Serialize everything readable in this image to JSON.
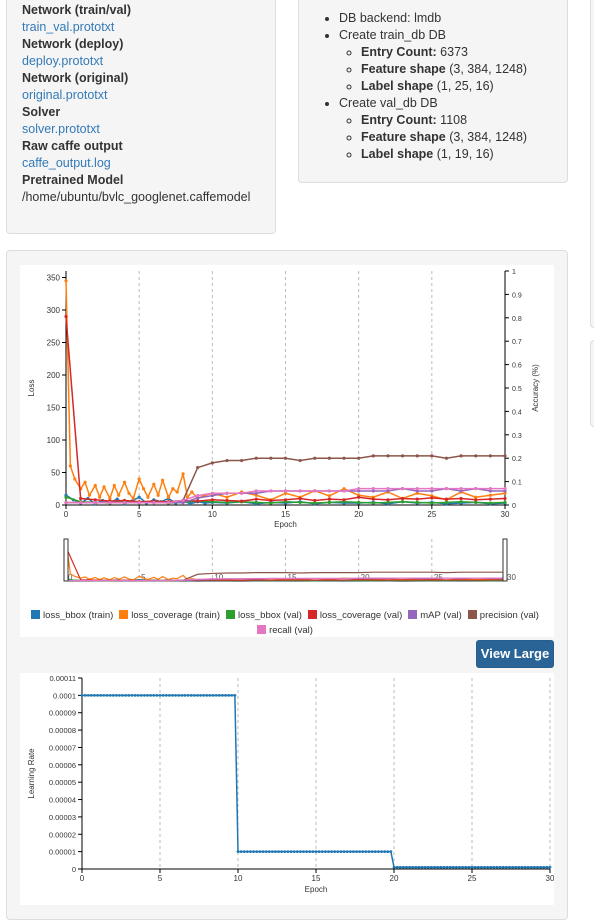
{
  "job_files": {
    "items": [
      {
        "label": "Network (train/val)",
        "value": "train_val.prototxt",
        "link": true
      },
      {
        "label": "Network (deploy)",
        "value": "deploy.prototxt",
        "link": true
      },
      {
        "label": "Network (original)",
        "value": "original.prototxt",
        "link": true
      },
      {
        "label": "Solver",
        "value": "solver.prototxt",
        "link": true
      },
      {
        "label": "Raw caffe output",
        "value": "caffe_output.log",
        "link": true
      },
      {
        "label": "Pretrained Model",
        "value": "/home/ubuntu/bvlc_googlenet.caffemodel",
        "link": false
      }
    ]
  },
  "dataset": {
    "backend_label": "DB backend:",
    "backend_value": "lmdb",
    "train_title": "Create train_db DB",
    "train_entry_label": "Entry Count:",
    "train_entry_value": "6373",
    "train_feature_label": "Feature shape",
    "train_feature_value": "(3, 384, 1248)",
    "train_label_label": "Label shape",
    "train_label_value": "(1, 25, 16)",
    "val_title": "Create val_db DB",
    "val_entry_label": "Entry Count:",
    "val_entry_value": "1108",
    "val_feature_label": "Feature shape",
    "val_feature_value": "(3, 384, 1248)",
    "val_label_label": "Label shape",
    "val_label_value": "(1, 19, 16)"
  },
  "view_large_label": "View Large",
  "chart_data": [
    {
      "type": "line",
      "xlabel": "Epoch",
      "ylabel": "Loss",
      "y2label": "Accuracy (%)",
      "xlim": [
        0,
        30
      ],
      "ylim": [
        0,
        360
      ],
      "y2lim": [
        0,
        1
      ],
      "xticks": [
        0,
        5,
        10,
        15,
        20,
        25,
        30
      ],
      "yticks": [
        0,
        50,
        100,
        150,
        200,
        250,
        300,
        350
      ],
      "y2ticks": [
        0,
        0.1,
        0.2,
        0.3,
        0.4,
        0.5,
        0.6,
        0.7,
        0.8,
        0.9,
        1
      ],
      "grid": "vertical dashed",
      "legend_position": "bottom",
      "colors": {
        "loss_bbox (train)": "#1f77b4",
        "loss_coverage (train)": "#ff7f0e",
        "loss_bbox (val)": "#2ca02c",
        "loss_coverage (val)": "#d62728",
        "mAP (val)": "#9467bd",
        "precision (val)": "#8c564b",
        "recall (val)": "#e377c2"
      },
      "series": [
        {
          "name": "loss_bbox (train)",
          "axis": "y",
          "x": [
            0,
            0.5,
            1,
            1.5,
            2,
            2.5,
            3,
            3.5,
            4,
            4.5,
            5,
            5.5,
            6,
            6.5,
            7,
            7.5,
            8,
            8.5,
            9,
            9.5,
            10,
            11,
            12,
            13,
            14,
            15,
            16,
            17,
            18,
            19,
            20,
            21,
            22,
            23,
            24,
            25,
            26,
            27,
            28,
            29,
            30
          ],
          "values": [
            15,
            8,
            3,
            10,
            2,
            7,
            4,
            9,
            2,
            6,
            12,
            3,
            8,
            5,
            10,
            3,
            6,
            2,
            5,
            3,
            4,
            3,
            5,
            2,
            4,
            3,
            5,
            2,
            4,
            3,
            3,
            4,
            2,
            5,
            3,
            4,
            2,
            3,
            4,
            2,
            3
          ]
        },
        {
          "name": "loss_coverage (train)",
          "axis": "y",
          "x": [
            0,
            0.3,
            0.6,
            1,
            1.3,
            1.6,
            2,
            2.3,
            2.6,
            3,
            3.3,
            3.6,
            4,
            4.3,
            4.6,
            5,
            5.3,
            5.6,
            6,
            6.3,
            6.6,
            7,
            7.3,
            7.6,
            8,
            8.3,
            8.6,
            9,
            9.5,
            10,
            11,
            12,
            13,
            14,
            15,
            16,
            17,
            18,
            19,
            20,
            21,
            22,
            23,
            24,
            25,
            26,
            27,
            28,
            29,
            30
          ],
          "values": [
            345,
            60,
            40,
            25,
            35,
            15,
            30,
            12,
            28,
            10,
            30,
            15,
            35,
            18,
            10,
            40,
            25,
            12,
            32,
            15,
            38,
            12,
            25,
            20,
            48,
            12,
            20,
            10,
            15,
            18,
            12,
            20,
            15,
            8,
            18,
            12,
            22,
            14,
            25,
            15,
            12,
            20,
            10,
            18,
            14,
            8,
            20,
            12,
            15,
            18
          ]
        },
        {
          "name": "loss_bbox (val)",
          "axis": "y",
          "x": [
            0,
            1,
            2,
            3,
            4,
            5,
            6,
            7,
            8,
            9,
            10,
            11,
            12,
            13,
            14,
            15,
            16,
            17,
            18,
            19,
            20,
            21,
            22,
            23,
            24,
            25,
            26,
            27,
            28,
            29,
            30
          ],
          "values": [
            12,
            5,
            4,
            3,
            6,
            4,
            5,
            3,
            4,
            6,
            5,
            4,
            5,
            4,
            3,
            5,
            4,
            3,
            4,
            5,
            4,
            3,
            4,
            5,
            4,
            3,
            4,
            5,
            4,
            3,
            4
          ]
        },
        {
          "name": "loss_coverage (val)",
          "axis": "y",
          "x": [
            0,
            1,
            2,
            3,
            4,
            5,
            6,
            7,
            8,
            9,
            10,
            11,
            12,
            13,
            14,
            15,
            16,
            17,
            18,
            19,
            20,
            21,
            22,
            23,
            24,
            25,
            26,
            27,
            28,
            29,
            30
          ],
          "values": [
            290,
            10,
            8,
            6,
            7,
            5,
            6,
            5,
            7,
            6,
            8,
            7,
            6,
            9,
            7,
            8,
            10,
            7,
            9,
            8,
            12,
            9,
            8,
            10,
            9,
            11,
            9,
            10,
            8,
            9,
            10
          ]
        },
        {
          "name": "mAP (val)",
          "axis": "y2",
          "x": [
            0,
            1,
            2,
            3,
            4,
            5,
            6,
            7,
            8,
            9,
            10,
            11,
            12,
            13,
            14,
            15,
            16,
            17,
            18,
            19,
            20,
            21,
            22,
            23,
            24,
            25,
            26,
            27,
            28,
            29,
            30
          ],
          "values": [
            0.01,
            0.01,
            0.01,
            0.01,
            0.01,
            0.01,
            0.01,
            0.01,
            0.01,
            0.03,
            0.04,
            0.05,
            0.05,
            0.05,
            0.06,
            0.06,
            0.06,
            0.06,
            0.06,
            0.06,
            0.06,
            0.06,
            0.06,
            0.07,
            0.06,
            0.06,
            0.07,
            0.06,
            0.07,
            0.06,
            0.06
          ]
        },
        {
          "name": "precision (val)",
          "axis": "y2",
          "x": [
            0,
            1,
            2,
            3,
            4,
            5,
            6,
            7,
            8,
            9,
            10,
            11,
            12,
            13,
            14,
            15,
            16,
            17,
            18,
            19,
            20,
            21,
            22,
            23,
            24,
            25,
            26,
            27,
            28,
            29,
            30
          ],
          "values": [
            0.01,
            0.01,
            0.01,
            0.01,
            0.01,
            0.01,
            0.01,
            0.01,
            0.02,
            0.16,
            0.18,
            0.19,
            0.19,
            0.2,
            0.2,
            0.2,
            0.19,
            0.2,
            0.2,
            0.2,
            0.2,
            0.21,
            0.21,
            0.21,
            0.21,
            0.21,
            0.2,
            0.21,
            0.21,
            0.21,
            0.21
          ]
        },
        {
          "name": "recall (val)",
          "axis": "y2",
          "x": [
            0,
            1,
            2,
            3,
            4,
            5,
            6,
            7,
            8,
            9,
            10,
            11,
            12,
            13,
            14,
            15,
            16,
            17,
            18,
            19,
            20,
            21,
            22,
            23,
            24,
            25,
            26,
            27,
            28,
            29,
            30
          ],
          "values": [
            0.01,
            0.01,
            0.01,
            0.01,
            0.01,
            0.01,
            0.01,
            0.01,
            0.02,
            0.04,
            0.05,
            0.05,
            0.05,
            0.06,
            0.06,
            0.06,
            0.06,
            0.06,
            0.06,
            0.06,
            0.07,
            0.07,
            0.07,
            0.07,
            0.07,
            0.07,
            0.07,
            0.07,
            0.07,
            0.07,
            0.07
          ]
        }
      ]
    },
    {
      "type": "line",
      "xlabel": "Epoch",
      "ylabel": "Learning Rate",
      "xlim": [
        0,
        30
      ],
      "ylim": [
        0,
        0.00011
      ],
      "xticks": [
        0,
        5,
        10,
        15,
        20,
        25,
        30
      ],
      "yticks": [
        0,
        1e-05,
        2e-05,
        3e-05,
        4e-05,
        5e-05,
        6e-05,
        7e-05,
        8e-05,
        9e-05,
        0.0001,
        0.00011
      ],
      "ytick_labels": [
        "0",
        "0.00001",
        "0.00002",
        "0.00003",
        "0.00004",
        "0.00005",
        "0.00006",
        "0.00007",
        "0.00008",
        "0.00009",
        "0.0001",
        "0.00011"
      ],
      "grid": "vertical dashed",
      "series": [
        {
          "name": "learning_rate",
          "color": "#1f77b4",
          "segments": [
            {
              "from": 0,
              "to": 9.8,
              "value": 0.0001
            },
            {
              "from": 10,
              "to": 19.8,
              "value": 1e-05
            },
            {
              "from": 20,
              "to": 30,
              "value": 1e-06
            }
          ]
        }
      ]
    }
  ]
}
